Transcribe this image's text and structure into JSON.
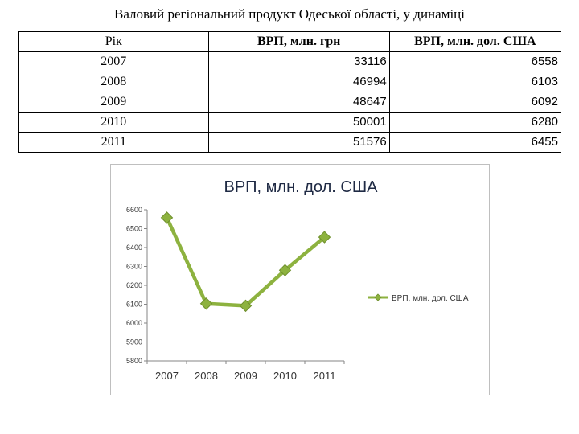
{
  "page_title": "Валовий регіональний продукт Одеської області, у динаміці",
  "table": {
    "headers": [
      "Рік",
      "ВРП, млн. грн",
      "ВРП, млн. дол. США"
    ],
    "rows": [
      [
        "2007",
        "33116",
        "6558"
      ],
      [
        "2008",
        "46994",
        "6103"
      ],
      [
        "2009",
        "48647",
        "6092"
      ],
      [
        "2010",
        "50001",
        "6280"
      ],
      [
        "2011",
        "51576",
        "6455"
      ]
    ]
  },
  "chart_data": {
    "type": "line",
    "title": "ВРП, млн. дол. США",
    "categories": [
      "2007",
      "2008",
      "2009",
      "2010",
      "2011"
    ],
    "series": [
      {
        "name": "ВРП, млн. дол. США",
        "values": [
          6558,
          6103,
          6092,
          6280,
          6455
        ],
        "color": "#8db23f"
      }
    ],
    "ylim": [
      5800,
      6600
    ],
    "yticks": [
      "6600",
      "6500",
      "6400",
      "6300",
      "6200",
      "6100",
      "6000",
      "5900",
      "5800"
    ],
    "grid": false,
    "legend": "right",
    "xlabel": "",
    "ylabel": ""
  }
}
